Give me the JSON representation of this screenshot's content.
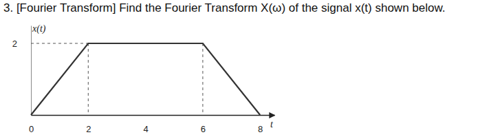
{
  "chart_data": {
    "type": "line",
    "title": "3. [Fourier Transform] Find the Fourier Transform X(ω) of the signal x(t) shown below.",
    "x_label": "t",
    "y_label": "x(t)",
    "x": [
      0,
      2,
      6,
      8
    ],
    "values": [
      0,
      2,
      2,
      0
    ],
    "xlim": [
      0,
      8.5
    ],
    "ylim": [
      0,
      2.5
    ],
    "xticks": [
      0,
      2,
      4,
      6,
      8
    ],
    "yticks": [
      2
    ],
    "color": "#333333",
    "grid": false
  }
}
